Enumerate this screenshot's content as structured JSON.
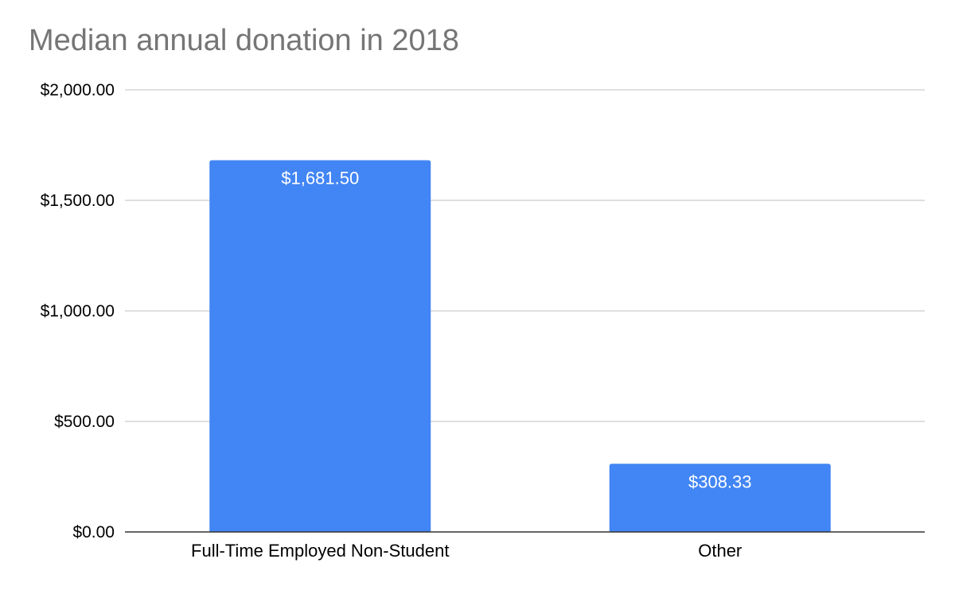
{
  "chart_data": {
    "type": "bar",
    "title": "Median annual donation in 2018",
    "xlabel": "",
    "ylabel": "",
    "categories": [
      "Full-Time Employed Non-Student",
      "Other"
    ],
    "values": [
      1681.5,
      308.33
    ],
    "data_labels": [
      "$1,681.50",
      "$308.33"
    ],
    "ylim": [
      0,
      2000
    ],
    "yticks": [
      0,
      500,
      1000,
      1500,
      2000
    ],
    "ytick_labels": [
      "$0.00",
      "$500.00",
      "$1,000.00",
      "$1,500.00",
      "$2,000.00"
    ],
    "grid": true,
    "legend": "none",
    "colors": {
      "bar": "#4285f4",
      "gridline": "#cccccc",
      "axis": "#333333",
      "title": "#757575",
      "data_label": "#ffffff"
    }
  }
}
